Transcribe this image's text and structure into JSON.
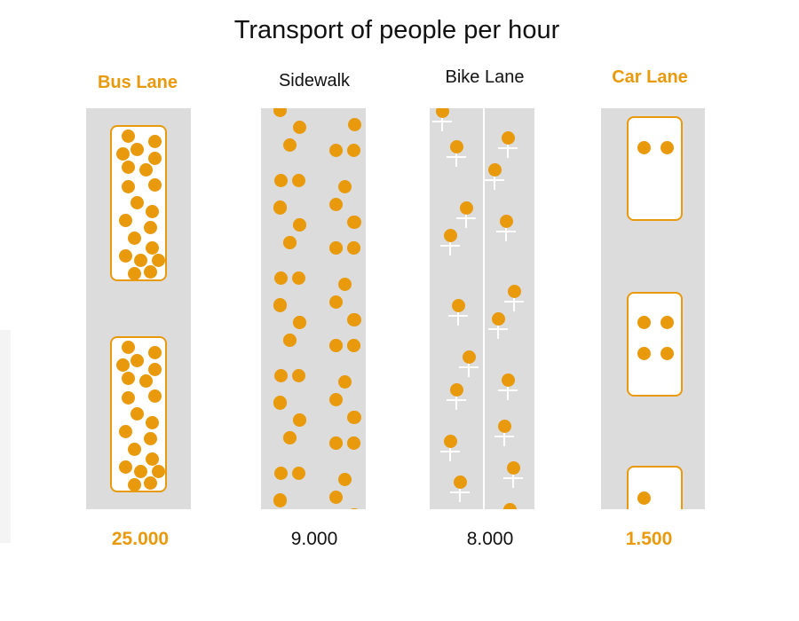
{
  "title": "Transport of people per hour",
  "colors": {
    "accent": "#e89a0c",
    "lane": "#dcdcdc",
    "text": "#111111"
  },
  "lanes": [
    {
      "key": "bus",
      "label": "Bus Lane",
      "value": "25.000",
      "highlight": true
    },
    {
      "key": "sidewalk",
      "label": "Sidewalk",
      "value": "9.000",
      "highlight": false
    },
    {
      "key": "bike",
      "label": "Bike Lane",
      "value": "8.000",
      "highlight": false
    },
    {
      "key": "car",
      "label": "Car Lane",
      "value": "1.500",
      "highlight": true
    }
  ]
}
